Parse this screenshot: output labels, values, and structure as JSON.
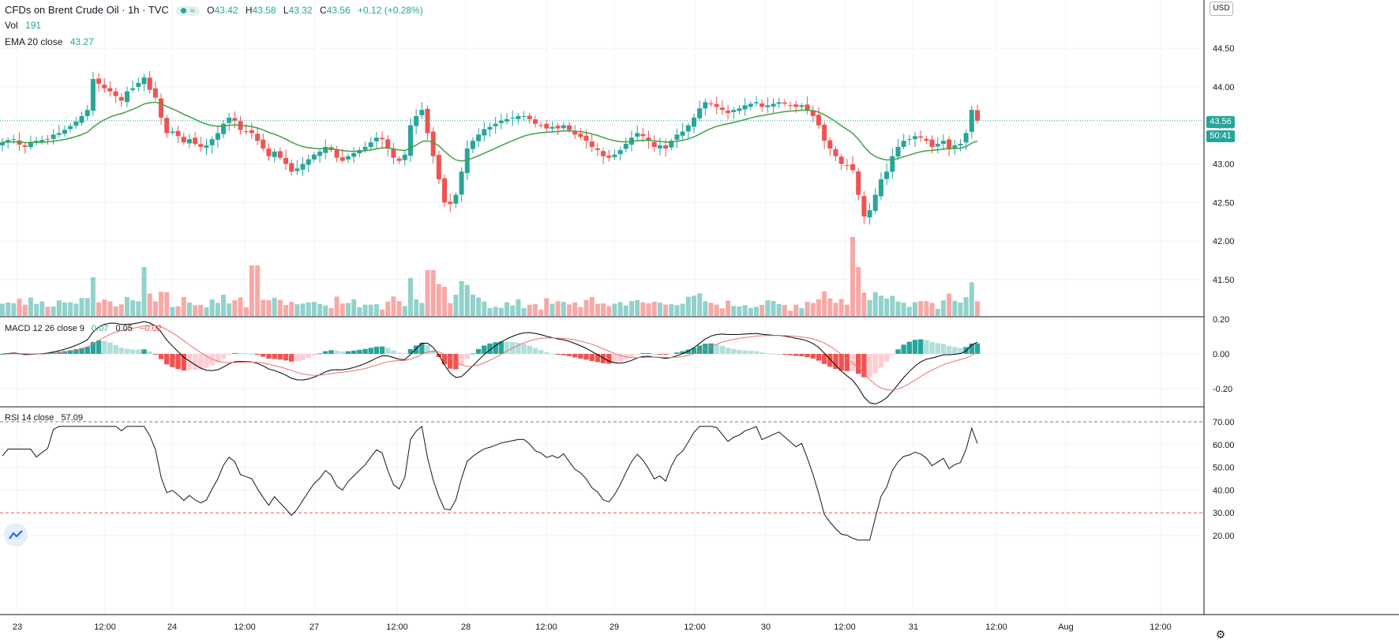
{
  "header": {
    "symbol": "CFDs on Brent Crude Oil · 1h · TVC",
    "open_label": "O",
    "open": "43.42",
    "high_label": "H",
    "high": "43.58",
    "low_label": "L",
    "low": "43.32",
    "close_label": "C",
    "close": "43.56",
    "change": "+0.12 (+0.28%)"
  },
  "vol_legend": {
    "name": "Vol",
    "value": "191"
  },
  "ema_legend": {
    "name": "EMA 20 close",
    "value": "43.27"
  },
  "macd_legend": {
    "name": "MACD 12 26 close 9",
    "v1": "0.07",
    "v2": "0.05",
    "v3": "−0.02"
  },
  "rsi_legend": {
    "name": "RSI 14 close",
    "value": "57.09"
  },
  "currency": "USD",
  "price_tag": "43.56",
  "countdown_tag": "50:41",
  "colors": {
    "up": "#26a69a",
    "down": "#ef5350",
    "ema": "#43a047",
    "macd": "#000000",
    "signal": "#e57373"
  },
  "icons": {
    "logo": "tradingview-logo-icon",
    "settings": "gear-icon"
  },
  "chart_data": [
    {
      "type": "candlestick",
      "title": "CFDs on Brent Crude Oil · 1h · TVC",
      "y_ticks": [
        "44.50",
        "44.00",
        "43.50",
        "43.00",
        "42.50",
        "42.00",
        "41.50"
      ],
      "y_tick_values": [
        44.5,
        44.0,
        43.5,
        43.0,
        42.5,
        42.0,
        41.5
      ],
      "x_ticks": [
        "23",
        "12:00",
        "24",
        "12:00",
        "27",
        "12:00",
        "28",
        "12:00",
        "29",
        "12:00",
        "30",
        "12:00",
        "31",
        "12:00",
        "Aug",
        "12:00"
      ],
      "ylim": [
        41.0,
        45.0
      ],
      "close_series": [
        43.28,
        43.31,
        43.32,
        43.25,
        43.22,
        43.28,
        43.3,
        43.31,
        43.32,
        43.38,
        43.4,
        43.44,
        43.49,
        43.55,
        43.62,
        43.7,
        44.1,
        44.04,
        43.98,
        43.94,
        43.88,
        43.82,
        43.94,
        43.98,
        44.05,
        44.12,
        43.96,
        43.86,
        43.6,
        43.4,
        43.42,
        43.36,
        43.28,
        43.32,
        43.26,
        43.22,
        43.24,
        43.32,
        43.4,
        43.52,
        43.6,
        43.56,
        43.44,
        43.42,
        43.4,
        43.3,
        43.2,
        43.1,
        43.16,
        43.08,
        43.0,
        42.9,
        42.94,
        43.0,
        43.06,
        43.12,
        43.16,
        43.22,
        43.18,
        43.08,
        43.04,
        43.1,
        43.14,
        43.18,
        43.22,
        43.28,
        43.34,
        43.32,
        43.2,
        43.08,
        43.04,
        43.12,
        43.5,
        43.62,
        43.7,
        43.4,
        43.1,
        42.8,
        42.5,
        42.48,
        42.6,
        42.9,
        43.2,
        43.3,
        43.38,
        43.45,
        43.48,
        43.52,
        43.56,
        43.58,
        43.6,
        43.62,
        43.62,
        43.58,
        43.52,
        43.5,
        43.46,
        43.48,
        43.46,
        43.5,
        43.44,
        43.38,
        43.35,
        43.3,
        43.22,
        43.18,
        43.1,
        43.08,
        43.12,
        43.18,
        43.26,
        43.34,
        43.4,
        43.36,
        43.3,
        43.22,
        43.24,
        43.2,
        43.3,
        43.38,
        43.42,
        43.5,
        43.6,
        43.72,
        43.8,
        43.78,
        43.74,
        43.7,
        43.66,
        43.7,
        43.72,
        43.76,
        43.78,
        43.8,
        43.74,
        43.76,
        43.78,
        43.8,
        43.78,
        43.76,
        43.74,
        43.76,
        43.7,
        43.62,
        43.5,
        43.3,
        43.2,
        43.1,
        43.0,
        42.98,
        42.92,
        42.6,
        42.32,
        42.4,
        42.6,
        42.8,
        42.9,
        43.1,
        43.22,
        43.3,
        43.32,
        43.36,
        43.34,
        43.3,
        43.22,
        43.26,
        43.3,
        43.2,
        43.24,
        43.26,
        43.4,
        43.7,
        43.56
      ]
    },
    {
      "type": "line",
      "title": "MACD 12 26 close 9",
      "y_ticks": [
        "0.20",
        "0.00",
        "-0.20"
      ],
      "y_tick_values": [
        0.2,
        0.0,
        -0.2
      ],
      "ylim": [
        -0.3,
        0.25
      ]
    },
    {
      "type": "line",
      "title": "RSI 14 close",
      "y_ticks": [
        "70.00",
        "60.00",
        "50.00",
        "40.00",
        "30.00",
        "20.00"
      ],
      "y_tick_values": [
        70,
        60,
        50,
        40,
        30,
        20
      ],
      "ylim": [
        15,
        72
      ],
      "bands": [
        70,
        30
      ]
    }
  ]
}
